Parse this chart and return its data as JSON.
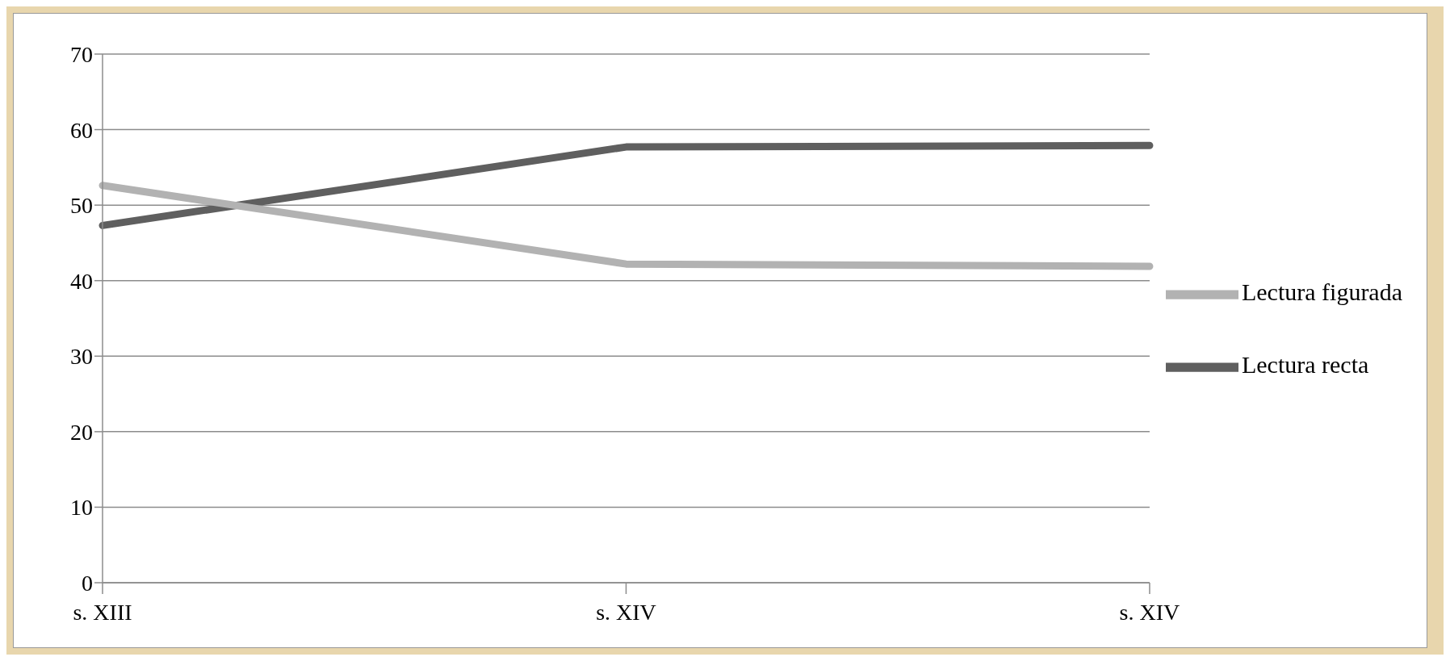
{
  "chart_data": {
    "type": "line",
    "categories": [
      "s. XIII",
      "s. XIV",
      "s. XIV"
    ],
    "series": [
      {
        "name": "Lectura recta",
        "color": "#5f5f5f",
        "values": [
          47.3,
          57.7,
          57.9
        ]
      },
      {
        "name": "Lectura figurada",
        "color": "#b2b2b2",
        "values": [
          52.6,
          42.2,
          41.9
        ]
      }
    ],
    "ylim": [
      0,
      70
    ],
    "yticks": [
      0,
      10,
      20,
      30,
      40,
      50,
      60,
      70
    ],
    "grid": "y",
    "legend": "right",
    "marker": "none",
    "line_style": "solid"
  }
}
